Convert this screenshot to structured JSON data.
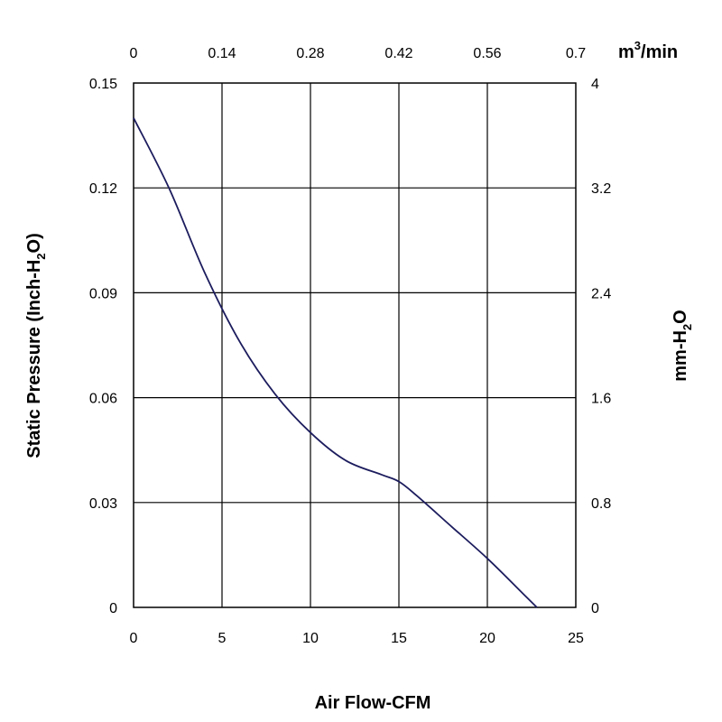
{
  "chart_data": {
    "type": "line",
    "title": "",
    "xlabel": "Air Flow-CFM",
    "ylabel": {
      "main": "Static Pressure (Inch-H",
      "sub": "2",
      "tail": "O)"
    },
    "x2label": {
      "main": "m",
      "sup": "3",
      "tail": "/min"
    },
    "y2label": {
      "main": "mm-H",
      "sub": "2",
      "tail": "O"
    },
    "xlim": [
      0,
      25
    ],
    "ylim": [
      0,
      0.15
    ],
    "x2lim": [
      0,
      0.7
    ],
    "y2lim": [
      0,
      4
    ],
    "x_ticks": [
      "0",
      "5",
      "10",
      "15",
      "20",
      "25"
    ],
    "y_ticks": [
      "0",
      "0.03",
      "0.06",
      "0.09",
      "0.12",
      "0.15"
    ],
    "x2_ticks": [
      "0",
      "0.14",
      "0.28",
      "0.42",
      "0.56",
      "0.7"
    ],
    "y2_ticks": [
      "0",
      "0.8",
      "1.6",
      "2.4",
      "3.2",
      "4"
    ],
    "grid": true,
    "line_color": "#1c1c5e",
    "series": [
      {
        "x": [
          0,
          2,
          4,
          6,
          8,
          10,
          12,
          14,
          15,
          16,
          18,
          20,
          22,
          22.8
        ],
        "y": [
          0.14,
          0.12,
          0.096,
          0.076,
          0.061,
          0.05,
          0.042,
          0.038,
          0.036,
          0.032,
          0.023,
          0.014,
          0.004,
          0
        ]
      }
    ]
  }
}
